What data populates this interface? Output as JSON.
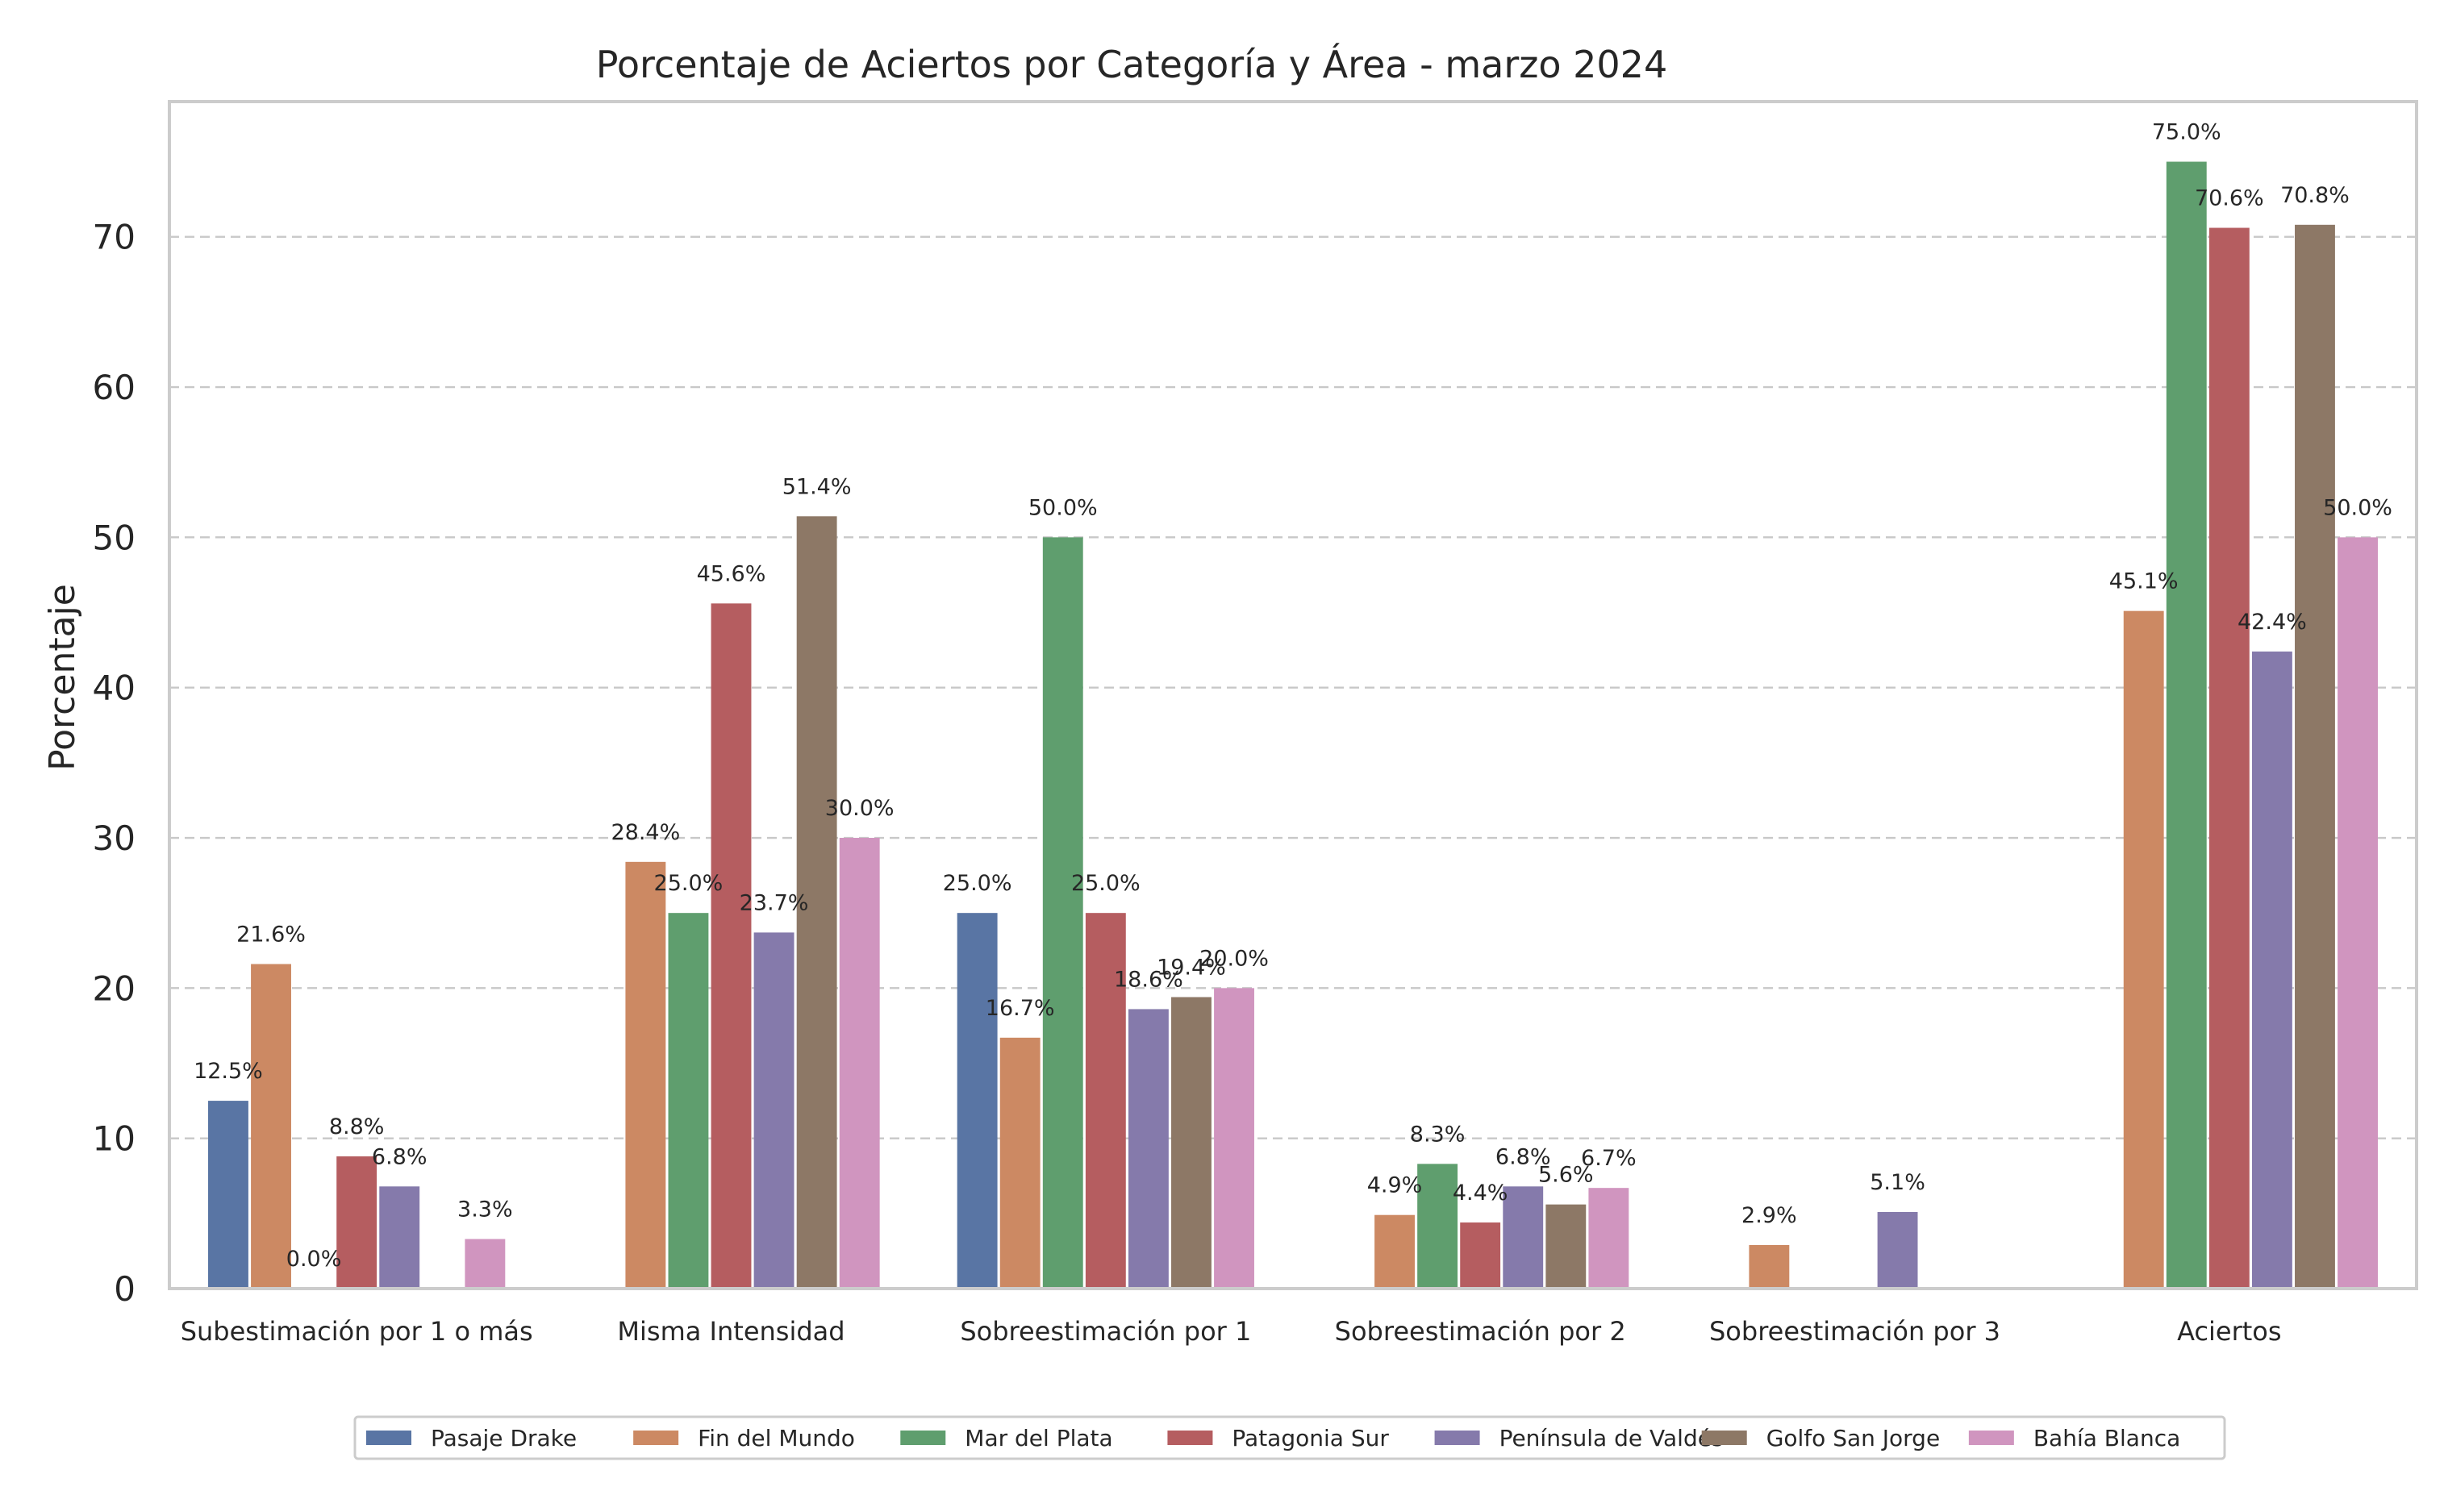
{
  "chart_data": {
    "type": "bar",
    "title": "Porcentaje de Aciertos por Categoría y Área - marzo 2024",
    "xlabel": "",
    "ylabel": "Porcentaje",
    "ylim": [
      0,
      79
    ],
    "yticks": [
      0,
      10,
      20,
      30,
      40,
      50,
      60,
      70
    ],
    "grid": "y-dashed",
    "legend_position": "bottom-center",
    "categories": [
      "Subestimación por 1 o más",
      "Misma Intensidad",
      "Sobreestimación por 1",
      "Sobreestimación por 2",
      "Sobreestimación por 3",
      "Aciertos"
    ],
    "series": [
      {
        "name": "Pasaje Drake",
        "color": "#5975a4",
        "values": [
          12.5,
          null,
          25.0,
          null,
          null,
          null
        ],
        "labels": [
          "12.5%",
          null,
          "25.0%",
          null,
          null,
          null
        ]
      },
      {
        "name": "Fin del Mundo",
        "color": "#cc8963",
        "values": [
          21.6,
          28.4,
          16.7,
          4.9,
          2.9,
          45.1
        ],
        "labels": [
          "21.6%",
          "28.4%",
          "16.7%",
          "4.9%",
          "2.9%",
          "45.1%"
        ]
      },
      {
        "name": "Mar del Plata",
        "color": "#5f9e6e",
        "values": [
          0.0,
          25.0,
          50.0,
          8.3,
          null,
          75.0
        ],
        "labels": [
          "0.0%",
          "25.0%",
          "50.0%",
          "8.3%",
          null,
          "75.0%"
        ]
      },
      {
        "name": "Patagonia Sur",
        "color": "#b55d60",
        "values": [
          8.8,
          45.6,
          25.0,
          4.4,
          null,
          70.6
        ],
        "labels": [
          "8.8%",
          "45.6%",
          "25.0%",
          "4.4%",
          null,
          "70.6%"
        ]
      },
      {
        "name": "Península de Valdés",
        "color": "#857aab",
        "values": [
          6.8,
          23.7,
          18.6,
          6.8,
          5.1,
          42.4
        ],
        "labels": [
          "6.8%",
          "23.7%",
          "18.6%",
          "6.8%",
          "5.1%",
          "42.4%"
        ]
      },
      {
        "name": "Golfo San Jorge",
        "color": "#8d7866",
        "values": [
          null,
          51.4,
          19.4,
          5.6,
          null,
          70.8
        ],
        "labels": [
          null,
          "51.4%",
          "19.4%",
          "5.6%",
          null,
          "70.8%"
        ]
      },
      {
        "name": "Bahía Blanca",
        "color": "#d095bf",
        "values": [
          3.3,
          30.0,
          20.0,
          6.7,
          null,
          50.0
        ],
        "labels": [
          "3.3%",
          "30.0%",
          "20.0%",
          "6.7%",
          null,
          "50.0%"
        ]
      }
    ]
  }
}
